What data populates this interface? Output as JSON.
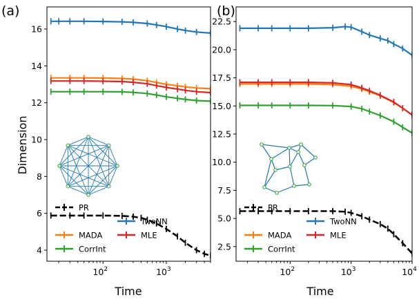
{
  "chart_data": [
    {
      "panel_label": "(a)",
      "type": "line",
      "xscale": "log",
      "xlabel": "Time",
      "ylabel": "Dimension",
      "xlim": [
        13,
        5000
      ],
      "ylim": [
        3.4,
        17.2
      ],
      "xticks": [
        {
          "value": 100,
          "label": "10",
          "exp": "2"
        },
        {
          "value": 1000,
          "label": "10",
          "exp": "3"
        }
      ],
      "yticks": [
        4,
        6,
        8,
        10,
        12,
        14,
        16
      ],
      "ytick_labels": [
        "4",
        "6",
        "8",
        "10",
        "12",
        "14",
        "16"
      ],
      "legend": {
        "placement": "lower-left",
        "columns": 2
      },
      "inset": "complete graph with 8 nodes",
      "series": [
        {
          "name": "TwoNN",
          "color": "#1f77b4",
          "dash": "solid",
          "errorbars": true,
          "x": [
            15,
            20,
            30,
            50,
            100,
            200,
            300,
            500,
            700,
            1000,
            1500,
            2000,
            3000,
            5000
          ],
          "y": [
            16.42,
            16.42,
            16.42,
            16.42,
            16.41,
            16.39,
            16.36,
            16.3,
            16.22,
            16.13,
            16.0,
            15.92,
            15.84,
            15.78
          ]
        },
        {
          "name": "MADA",
          "color": "#ff7f0e",
          "dash": "solid",
          "errorbars": true,
          "x": [
            15,
            30,
            50,
            100,
            200,
            300,
            500,
            700,
            1000,
            1500,
            2000,
            3000,
            5000
          ],
          "y": [
            13.35,
            13.35,
            13.35,
            13.34,
            13.32,
            13.28,
            13.2,
            13.1,
            13.0,
            12.92,
            12.86,
            12.8,
            12.76
          ]
        },
        {
          "name": "CorrInt",
          "color": "#2ca02c",
          "dash": "solid",
          "errorbars": true,
          "x": [
            15,
            30,
            50,
            100,
            200,
            300,
            500,
            700,
            1000,
            1500,
            2000,
            3000,
            5000
          ],
          "y": [
            12.6,
            12.6,
            12.6,
            12.6,
            12.59,
            12.56,
            12.5,
            12.42,
            12.32,
            12.24,
            12.18,
            12.12,
            12.08
          ]
        },
        {
          "name": "MLE",
          "color": "#d62728",
          "dash": "solid",
          "errorbars": true,
          "x": [
            15,
            30,
            50,
            100,
            200,
            300,
            500,
            700,
            1000,
            1500,
            2000,
            3000,
            5000
          ],
          "y": [
            13.18,
            13.18,
            13.18,
            13.17,
            13.15,
            13.11,
            13.03,
            12.93,
            12.83,
            12.74,
            12.67,
            12.6,
            12.55
          ]
        },
        {
          "name": "PR",
          "color": "#000000",
          "dash": "dashed",
          "errorbars": true,
          "x": [
            15,
            30,
            50,
            100,
            200,
            300,
            400,
            500,
            700,
            1000,
            1500,
            2000,
            3000,
            4000,
            5000
          ],
          "y": [
            5.88,
            5.88,
            5.88,
            5.88,
            5.86,
            5.82,
            5.75,
            5.65,
            5.45,
            5.15,
            4.75,
            4.4,
            4.0,
            3.8,
            3.7
          ]
        }
      ]
    },
    {
      "panel_label": "(b)",
      "type": "line",
      "xscale": "log",
      "xlabel": "Time",
      "ylabel": "",
      "xlim": [
        13,
        10000
      ],
      "ylim": [
        1.2,
        23.8
      ],
      "xticks": [
        {
          "value": 100,
          "label": "10",
          "exp": "2"
        },
        {
          "value": 1000,
          "label": "10",
          "exp": "3"
        },
        {
          "value": 10000,
          "label": "10",
          "exp": "4"
        }
      ],
      "yticks": [
        2.5,
        5,
        7.5,
        10,
        12.5,
        15,
        17.5,
        20,
        22.5
      ],
      "ytick_labels": [
        "2.5",
        "5.0",
        "7.5",
        "10.0",
        "12.5",
        "15.0",
        "17.5",
        "20.0",
        "22.5"
      ],
      "legend": {
        "placement": "lower-left",
        "columns": 2
      },
      "inset": "sparse planar graph with 13 nodes",
      "series": [
        {
          "name": "TwoNN",
          "color": "#1f77b4",
          "dash": "solid",
          "errorbars": true,
          "x": [
            15,
            30,
            50,
            100,
            200,
            500,
            800,
            1000,
            1500,
            2000,
            3000,
            4000,
            5000,
            7000,
            10000
          ],
          "y": [
            21.9,
            21.9,
            21.9,
            21.9,
            21.9,
            21.95,
            22.05,
            22.0,
            21.6,
            21.3,
            21.0,
            20.8,
            20.5,
            20.1,
            19.5
          ]
        },
        {
          "name": "MADA",
          "color": "#ff7f0e",
          "dash": "solid",
          "errorbars": true,
          "x": [
            15,
            30,
            50,
            100,
            200,
            500,
            1000,
            1500,
            2000,
            3000,
            5000,
            7000,
            10000
          ],
          "y": [
            16.95,
            16.95,
            16.95,
            16.95,
            16.95,
            16.9,
            16.75,
            16.5,
            16.25,
            15.9,
            15.3,
            14.8,
            14.2
          ]
        },
        {
          "name": "CorrInt",
          "color": "#2ca02c",
          "dash": "solid",
          "errorbars": true,
          "x": [
            15,
            30,
            50,
            100,
            200,
            500,
            1000,
            1500,
            2000,
            3000,
            5000,
            7000,
            10000
          ],
          "y": [
            15.05,
            15.05,
            15.05,
            15.05,
            15.05,
            15.03,
            14.95,
            14.75,
            14.5,
            14.15,
            13.6,
            13.1,
            12.6
          ]
        },
        {
          "name": "MLE",
          "color": "#d62728",
          "dash": "solid",
          "errorbars": true,
          "x": [
            15,
            30,
            50,
            100,
            200,
            500,
            1000,
            1500,
            2000,
            3000,
            5000,
            7000,
            10000
          ],
          "y": [
            17.1,
            17.1,
            17.1,
            17.1,
            17.1,
            17.05,
            16.9,
            16.6,
            16.35,
            15.95,
            15.35,
            14.8,
            14.2
          ]
        },
        {
          "name": "PR",
          "color": "#000000",
          "dash": "dashed",
          "errorbars": true,
          "x": [
            15,
            30,
            50,
            100,
            200,
            500,
            800,
            1000,
            1500,
            2000,
            3000,
            4000,
            5000,
            7000,
            10000
          ],
          "y": [
            5.65,
            5.65,
            5.65,
            5.65,
            5.65,
            5.65,
            5.6,
            5.5,
            5.2,
            4.9,
            4.5,
            4.1,
            3.6,
            2.8,
            1.9
          ]
        }
      ]
    }
  ]
}
